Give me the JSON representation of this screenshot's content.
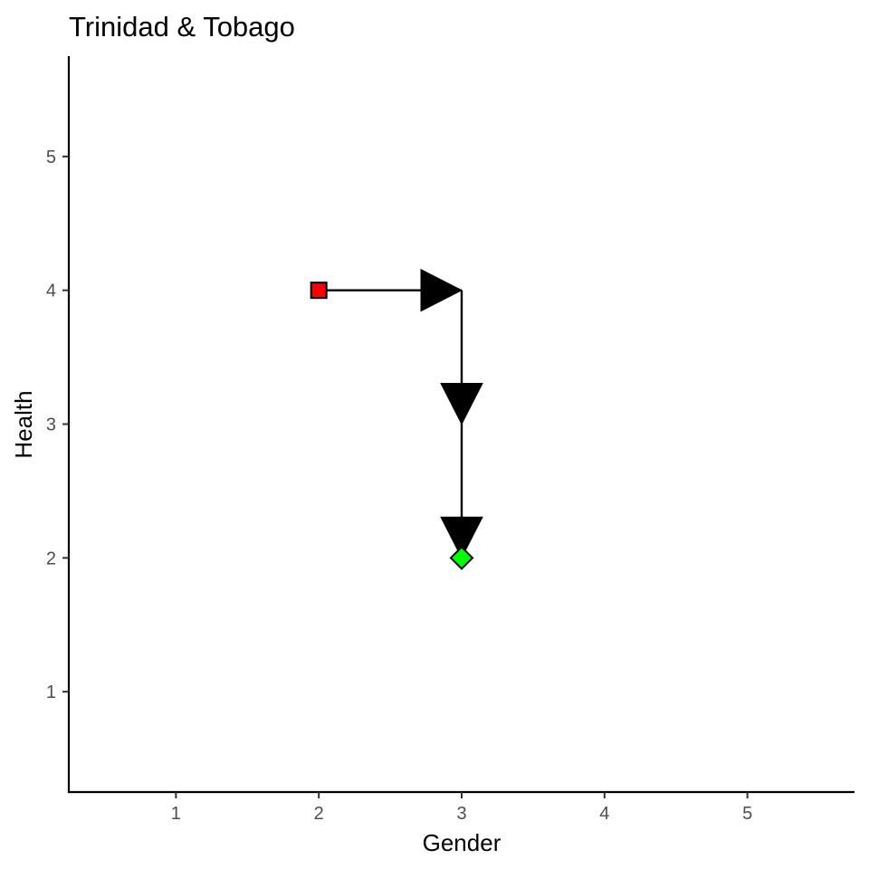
{
  "chart_data": {
    "type": "line",
    "title": "Trinidad & Tobago",
    "xlabel": "Gender",
    "ylabel": "Health",
    "xlim": [
      0.25,
      5.75
    ],
    "ylim": [
      0.25,
      5.75
    ],
    "x_ticks": [
      1,
      2,
      3,
      4,
      5
    ],
    "y_ticks": [
      1,
      2,
      3,
      4,
      5
    ],
    "grid": false,
    "path": [
      {
        "x": 2,
        "y": 4
      },
      {
        "x": 3,
        "y": 4
      },
      {
        "x": 3,
        "y": 3
      },
      {
        "x": 3,
        "y": 2
      }
    ],
    "start_point": {
      "x": 2,
      "y": 4,
      "shape": "square",
      "color": "#ff0000"
    },
    "end_point": {
      "x": 3,
      "y": 2,
      "shape": "diamond",
      "color": "#00ff00"
    }
  }
}
